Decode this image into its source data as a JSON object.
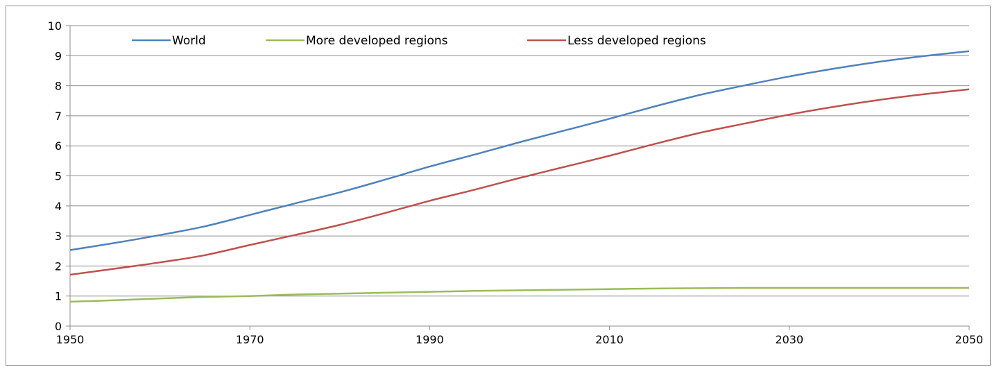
{
  "chart_data": {
    "type": "line",
    "title": "",
    "xlabel": "",
    "ylabel": "",
    "xlim": [
      1950,
      2050
    ],
    "ylim": [
      0,
      10
    ],
    "x_ticks": [
      "1950",
      "1970",
      "1990",
      "2010",
      "2030",
      "2050"
    ],
    "y_ticks": [
      "0",
      "1",
      "2",
      "3",
      "4",
      "5",
      "6",
      "7",
      "8",
      "9",
      "10"
    ],
    "grid": "horizontal",
    "legend": "top",
    "x": [
      1950,
      1955,
      1960,
      1965,
      1970,
      1975,
      1980,
      1985,
      1990,
      1995,
      2000,
      2005,
      2010,
      2015,
      2020,
      2025,
      2030,
      2035,
      2040,
      2045,
      2050
    ],
    "series": [
      {
        "name": "World",
        "color": "#4f81bd",
        "values": [
          2.53,
          2.77,
          3.03,
          3.32,
          3.7,
          4.08,
          4.45,
          4.87,
          5.31,
          5.71,
          6.12,
          6.51,
          6.9,
          7.31,
          7.69,
          8.01,
          8.31,
          8.57,
          8.8,
          8.99,
          9.15
        ]
      },
      {
        "name": "More developed regions",
        "color": "#9bbb59",
        "values": [
          0.81,
          0.86,
          0.92,
          0.97,
          1.0,
          1.05,
          1.08,
          1.11,
          1.14,
          1.17,
          1.19,
          1.21,
          1.23,
          1.25,
          1.26,
          1.27,
          1.27,
          1.27,
          1.27,
          1.27,
          1.27
        ]
      },
      {
        "name": "Less developed regions",
        "color": "#c0504d",
        "values": [
          1.71,
          1.91,
          2.12,
          2.36,
          2.7,
          3.03,
          3.37,
          3.76,
          4.17,
          4.54,
          4.93,
          5.3,
          5.67,
          6.06,
          6.43,
          6.74,
          7.04,
          7.3,
          7.53,
          7.72,
          7.88
        ]
      }
    ]
  }
}
